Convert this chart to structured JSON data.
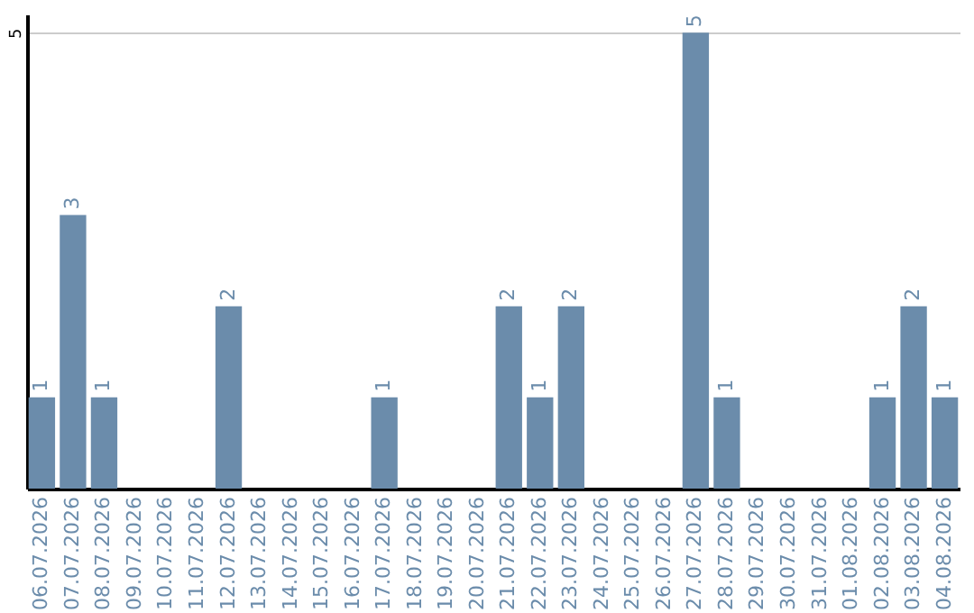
{
  "chart_data": {
    "type": "bar",
    "categories": [
      "06.07.2026",
      "07.07.2026",
      "08.07.2026",
      "09.07.2026",
      "10.07.2026",
      "11.07.2026",
      "12.07.2026",
      "13.07.2026",
      "14.07.2026",
      "15.07.2026",
      "16.07.2026",
      "17.07.2026",
      "18.07.2026",
      "19.07.2026",
      "20.07.2026",
      "21.07.2026",
      "22.07.2026",
      "23.07.2026",
      "24.07.2026",
      "25.07.2026",
      "26.07.2026",
      "27.07.2026",
      "28.07.2026",
      "29.07.2026",
      "30.07.2026",
      "31.07.2026",
      "01.08.2026",
      "02.08.2026",
      "03.08.2026",
      "04.08.2026"
    ],
    "values": [
      1,
      3,
      1,
      null,
      null,
      null,
      2,
      null,
      null,
      null,
      null,
      1,
      null,
      null,
      null,
      2,
      1,
      2,
      null,
      null,
      null,
      5,
      1,
      null,
      null,
      null,
      null,
      1,
      2,
      1
    ],
    "color": "#6b8cab",
    "ylim": [
      0,
      5.2
    ],
    "yticks": [
      5
    ],
    "grid": "y",
    "data_labels": true
  }
}
